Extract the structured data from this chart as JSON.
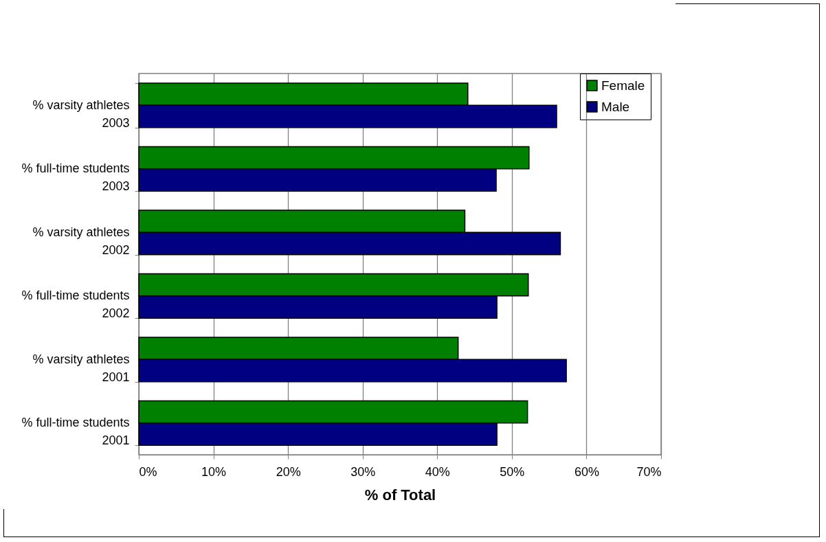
{
  "chart_data": {
    "type": "bar",
    "orientation": "horizontal",
    "xlabel": "% of Total",
    "categories": [
      "% varsity athletes 2003",
      "% full-time students 2003",
      "% varsity athletes 2002",
      "% full-time students 2002",
      "% varsity athletes 2001",
      "% full-time students 2001"
    ],
    "series": [
      {
        "name": "Female",
        "color": "#008000",
        "values": [
          44.1,
          52.3,
          43.7,
          52.2,
          42.8,
          52.1
        ]
      },
      {
        "name": "Male",
        "color": "#000080",
        "values": [
          56.0,
          47.9,
          56.5,
          48.0,
          57.3,
          48.0
        ]
      }
    ],
    "xlim": [
      0,
      70
    ],
    "xticks": [
      {
        "value": 0,
        "label": "0%"
      },
      {
        "value": 10,
        "label": "10%"
      },
      {
        "value": 20,
        "label": "20%"
      },
      {
        "value": 30,
        "label": "30%"
      },
      {
        "value": 40,
        "label": "40%"
      },
      {
        "value": 50,
        "label": "50%"
      },
      {
        "value": 60,
        "label": "60%"
      },
      {
        "value": 70,
        "label": "70%"
      }
    ],
    "grid": "x",
    "legend": "right"
  }
}
